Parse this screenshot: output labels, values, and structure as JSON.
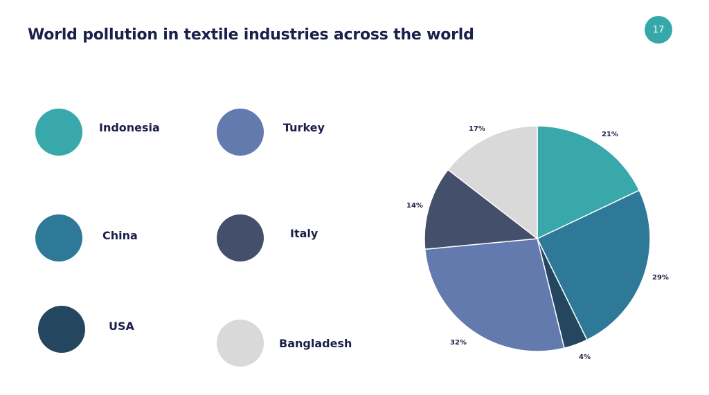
{
  "slide": {
    "title": "World pollution in textile industries across the world",
    "page_number": "17"
  },
  "colors": {
    "title": "#1b1f4a",
    "badge": "#36a8aa"
  },
  "chart_data": {
    "type": "pie",
    "title": "",
    "legend_placement": "left",
    "slices": [
      {
        "name": "Indonesia",
        "value": 21,
        "label": "21%",
        "color": "#38a8ab"
      },
      {
        "name": "China",
        "value": 29,
        "label": "29%",
        "color": "#2e7898"
      },
      {
        "name": "USA",
        "value": 4,
        "label": "4%",
        "color": "#24475f"
      },
      {
        "name": "Turkey",
        "value": 32,
        "label": "32%",
        "color": "#627aae"
      },
      {
        "name": "Italy",
        "value": 14,
        "label": "14%",
        "color": "#444f6c"
      },
      {
        "name": "Bangladesh",
        "value": 17,
        "label": "17%",
        "color": "#d9d9d9"
      }
    ]
  }
}
